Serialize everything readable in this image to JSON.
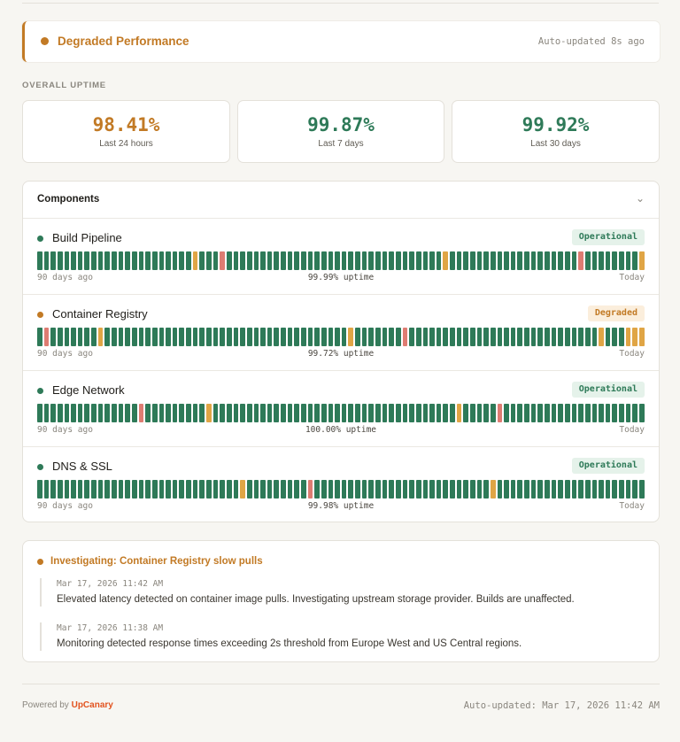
{
  "banner": {
    "status_title": "Degraded Performance",
    "auto_updated": "Auto-updated 8s ago",
    "accent_color": "#c27a25"
  },
  "overall_uptime": {
    "label": "OVERALL UPTIME",
    "cards": [
      {
        "value": "98.41%",
        "label": "Last 24 hours",
        "color": "#c27a25"
      },
      {
        "value": "99.87%",
        "label": "Last 7 days",
        "color": "#2e7a58"
      },
      {
        "value": "99.92%",
        "label": "Last 30 days",
        "color": "#2e7a58"
      }
    ]
  },
  "components": {
    "title": "Components",
    "chevron_icon": "chevron-down-icon",
    "start_label": "90 days ago",
    "end_label": "Today",
    "items": [
      {
        "name": "Build Pipeline",
        "status": "Operational",
        "status_type": "op",
        "uptime": "99.99% uptime",
        "days": {
          "total": 90,
          "degraded": [
            23,
            60,
            89
          ],
          "outage": [
            27,
            80
          ]
        }
      },
      {
        "name": "Container Registry",
        "status": "Degraded",
        "status_type": "dg",
        "uptime": "99.72% uptime",
        "days": {
          "total": 90,
          "degraded": [
            9,
            46,
            83,
            87,
            88,
            89
          ],
          "outage": [
            1,
            54
          ]
        }
      },
      {
        "name": "Edge Network",
        "status": "Operational",
        "status_type": "op",
        "uptime": "100.00% uptime",
        "days": {
          "total": 90,
          "degraded": [
            25,
            62
          ],
          "outage": [
            15,
            68
          ]
        }
      },
      {
        "name": "DNS & SSL",
        "status": "Operational",
        "status_type": "op",
        "uptime": "99.98% uptime",
        "days": {
          "total": 90,
          "degraded": [
            30,
            67
          ],
          "outage": [
            40
          ]
        }
      }
    ]
  },
  "colors": {
    "operational": "#2e7a58",
    "degraded": "#e0a545",
    "outage": "#de7c72",
    "degraded_dot": "#c27a25"
  },
  "incident": {
    "title": "Investigating: Container Registry slow pulls",
    "updates": [
      {
        "timestamp": "Mar 17, 2026 11:42 AM",
        "message": "Elevated latency detected on container image pulls. Investigating upstream storage provider. Builds are unaffected."
      },
      {
        "timestamp": "Mar 17, 2026 11:38 AM",
        "message": "Monitoring detected response times exceeding 2s threshold from Europe West and US Central regions."
      }
    ]
  },
  "footer": {
    "powered_by": "Powered by",
    "brand": "UpCanary",
    "auto_updated": "Auto-updated: Mar 17, 2026 11:42 AM"
  }
}
